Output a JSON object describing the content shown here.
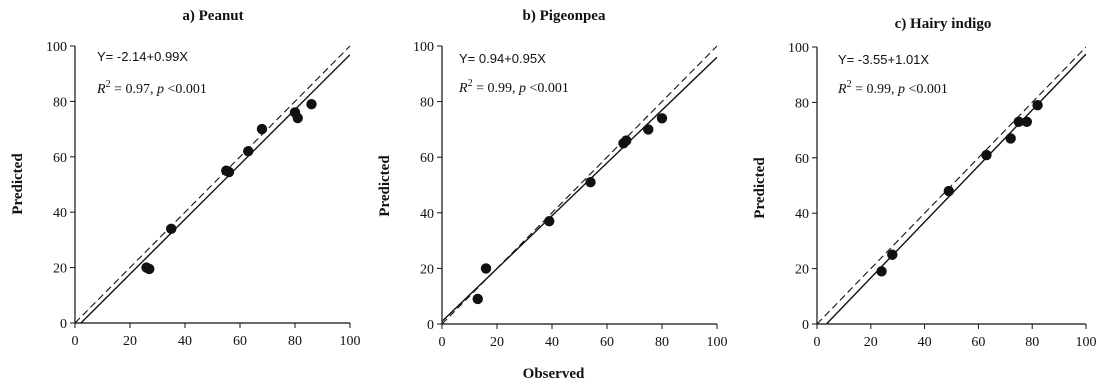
{
  "figure": {
    "shared_xlabel": "Observed"
  },
  "chart_data": [
    {
      "type": "scatter",
      "title": "a) Peanut",
      "xlabel": "",
      "ylabel": "Predicted",
      "xlim": [
        0,
        100
      ],
      "ylim": [
        0,
        100
      ],
      "xticks": [
        "0",
        "20",
        "40",
        "60",
        "80",
        "100"
      ],
      "yticks": [
        "0",
        "20",
        "40",
        "60",
        "80",
        "100"
      ],
      "grid": false,
      "equation": "Y= -2.14+0.99X",
      "r2_text": "= 0.97,",
      "p_text": "<0.001",
      "fit": {
        "intercept": -2.14,
        "slope": 0.99
      },
      "points": [
        {
          "x": 26,
          "y": 20
        },
        {
          "x": 27,
          "y": 19.5
        },
        {
          "x": 35,
          "y": 34
        },
        {
          "x": 55,
          "y": 55
        },
        {
          "x": 56,
          "y": 54.5
        },
        {
          "x": 63,
          "y": 62
        },
        {
          "x": 68,
          "y": 70
        },
        {
          "x": 80,
          "y": 76
        },
        {
          "x": 81,
          "y": 74
        },
        {
          "x": 86,
          "y": 79
        }
      ]
    },
    {
      "type": "scatter",
      "title": "b) Pigeonpea",
      "xlabel": "",
      "ylabel": "Predicted",
      "xlim": [
        0,
        100
      ],
      "ylim": [
        0,
        100
      ],
      "xticks": [
        "0",
        "20",
        "40",
        "60",
        "80",
        "100"
      ],
      "yticks": [
        "0",
        "20",
        "40",
        "60",
        "80",
        "100"
      ],
      "grid": false,
      "equation": "Y= 0.94+0.95X",
      "r2_text": "= 0.99,",
      "p_text": "<0.001",
      "fit": {
        "intercept": 0.94,
        "slope": 0.95
      },
      "points": [
        {
          "x": 13,
          "y": 9
        },
        {
          "x": 16,
          "y": 20
        },
        {
          "x": 39,
          "y": 37
        },
        {
          "x": 54,
          "y": 51
        },
        {
          "x": 66,
          "y": 65
        },
        {
          "x": 67,
          "y": 66
        },
        {
          "x": 75,
          "y": 70
        },
        {
          "x": 80,
          "y": 74
        }
      ]
    },
    {
      "type": "scatter",
      "title": "c) Hairy indigo",
      "xlabel": "",
      "ylabel": "Predicted",
      "xlim": [
        0,
        100
      ],
      "ylim": [
        0,
        100
      ],
      "xticks": [
        "0",
        "20",
        "40",
        "60",
        "80",
        "100"
      ],
      "yticks": [
        "0",
        "20",
        "40",
        "60",
        "80",
        "100"
      ],
      "grid": false,
      "equation": "Y= -3.55+1.01X",
      "r2_text": "= 0.99,",
      "p_text": "<0.001",
      "fit": {
        "intercept": -3.55,
        "slope": 1.01
      },
      "points": [
        {
          "x": 24,
          "y": 19
        },
        {
          "x": 28,
          "y": 25
        },
        {
          "x": 49,
          "y": 48
        },
        {
          "x": 63,
          "y": 61
        },
        {
          "x": 72,
          "y": 67
        },
        {
          "x": 75,
          "y": 73
        },
        {
          "x": 78,
          "y": 73
        },
        {
          "x": 82,
          "y": 79
        }
      ]
    }
  ]
}
